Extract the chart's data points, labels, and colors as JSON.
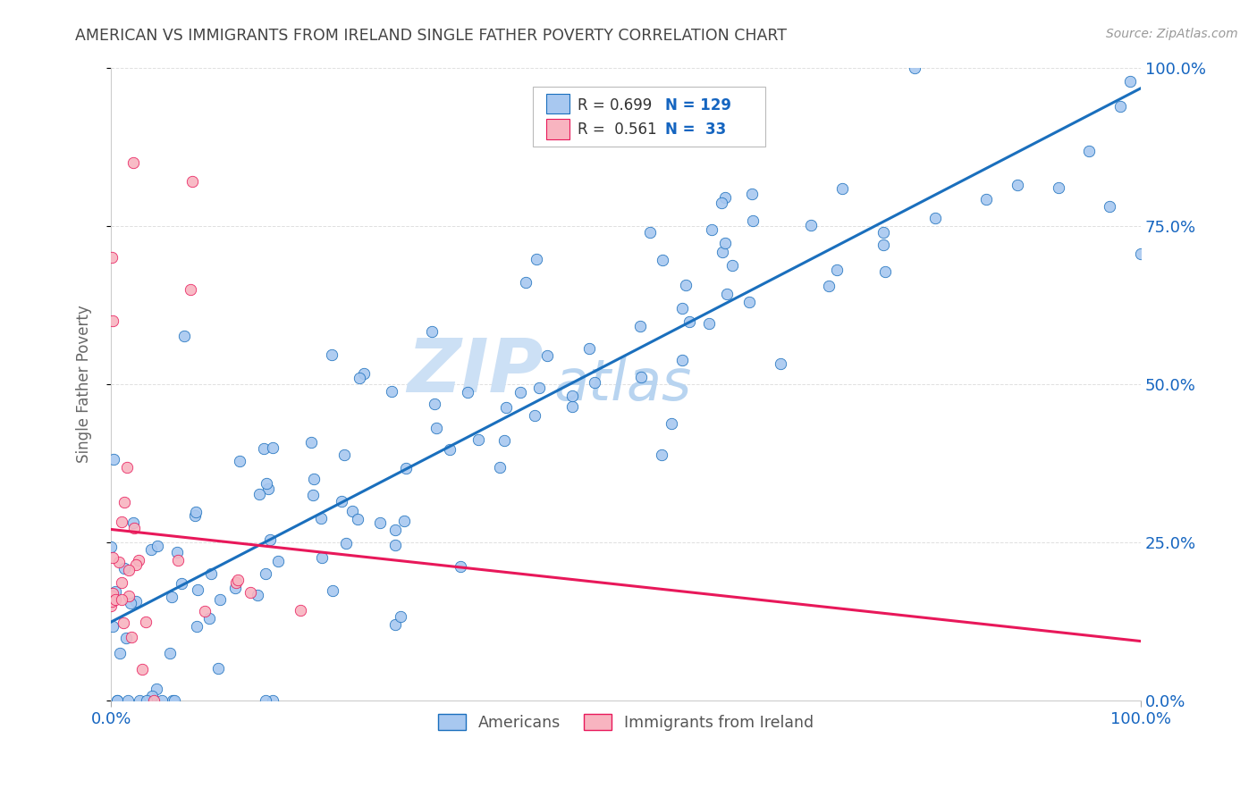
{
  "title": "AMERICAN VS IMMIGRANTS FROM IRELAND SINGLE FATHER POVERTY CORRELATION CHART",
  "source": "Source: ZipAtlas.com",
  "ylabel": "Single Father Poverty",
  "legend_label_americans": "Americans",
  "legend_label_ireland": "Immigrants from Ireland",
  "r_americans": "0.699",
  "n_americans": "129",
  "r_ireland": "0.561",
  "n_ireland": "33",
  "scatter_color_americans": "#a8c8f0",
  "scatter_color_ireland": "#f8b4c0",
  "line_color_americans": "#1a6fbd",
  "line_color_ireland": "#e8185a",
  "watermark_zip_color": "#cce0f5",
  "watermark_atlas_color": "#b8d4f0",
  "background_color": "#ffffff",
  "grid_color": "#d8d8d8",
  "title_color": "#444444",
  "axis_tick_color": "#1565c0",
  "legend_text_color": "#333333",
  "legend_rn_color": "#1565c0",
  "source_color": "#999999"
}
